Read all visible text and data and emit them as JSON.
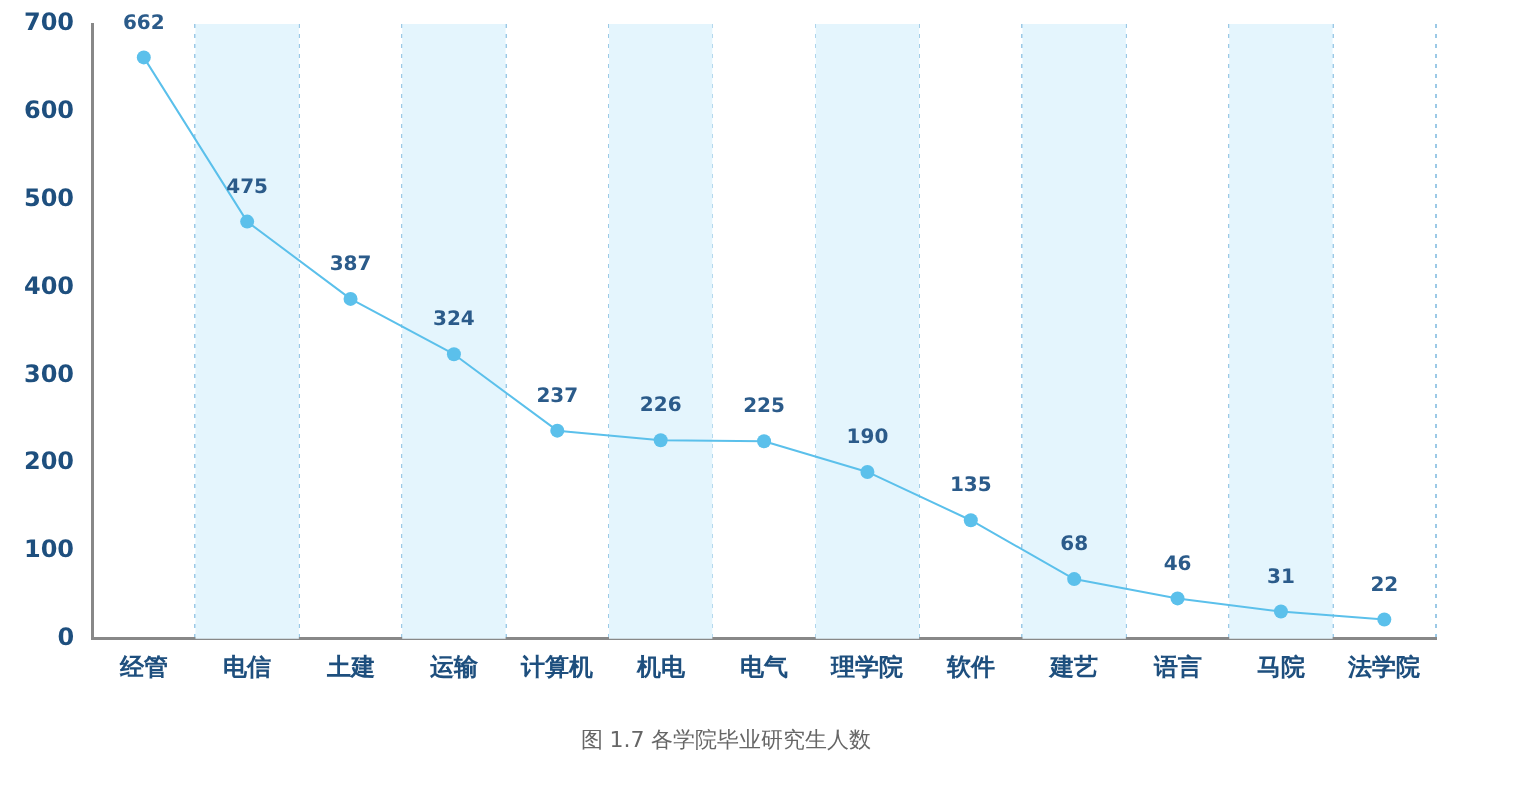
{
  "chart_data": {
    "type": "line",
    "title": "图 1.7 各学院毕业研究生人数",
    "categories": [
      "经管",
      "电信",
      "土建",
      "运输",
      "计算机",
      "机电",
      "电气",
      "理学院",
      "软件",
      "建艺",
      "语言",
      "马院",
      "法学院"
    ],
    "series": [
      {
        "color": "#5bc0eb",
        "values": [
          662,
          475,
          387,
          324,
          237,
          226,
          225,
          190,
          135,
          68,
          46,
          31,
          22
        ]
      }
    ],
    "ylim": [
      0,
      700
    ],
    "yticks": [
      0,
      100,
      200,
      300,
      400,
      500,
      600,
      700
    ],
    "grid": "x",
    "legend": false,
    "marker": "circle",
    "line_style": "solid",
    "data_labels": true,
    "bands": [
      {
        "axis": "x",
        "from": "电信",
        "to": "电信",
        "color": "#e4f5fd"
      },
      {
        "axis": "x",
        "from": "运输",
        "to": "运输",
        "color": "#e4f5fd"
      },
      {
        "axis": "x",
        "from": "机电",
        "to": "机电",
        "color": "#e4f5fd"
      },
      {
        "axis": "x",
        "from": "理学院",
        "to": "理学院",
        "color": "#e4f5fd"
      },
      {
        "axis": "x",
        "from": "建艺",
        "to": "建艺",
        "color": "#e4f5fd"
      },
      {
        "axis": "x",
        "from": "马院",
        "to": "马院",
        "color": "#e4f5fd"
      }
    ]
  }
}
